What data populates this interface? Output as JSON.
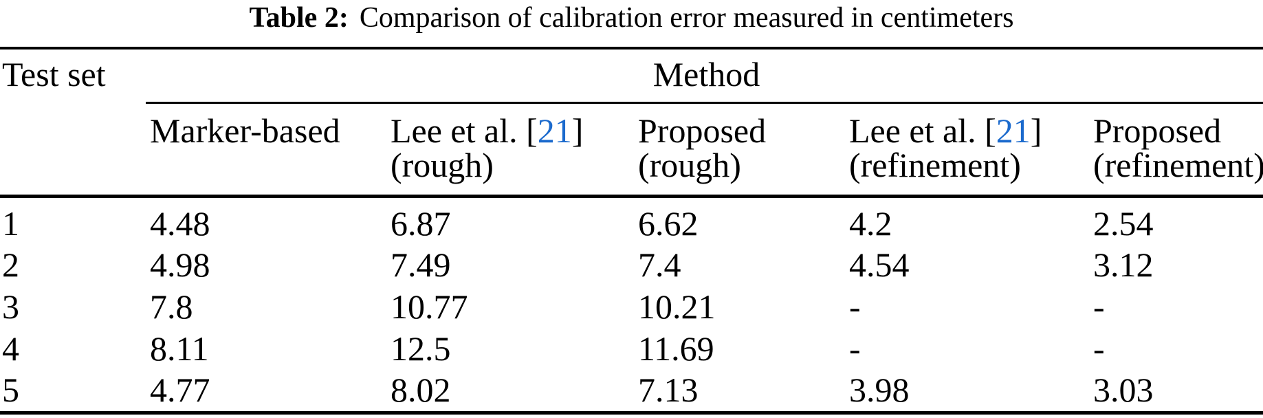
{
  "caption": {
    "label": "Table 2:",
    "text": "Comparison of calibration error measured in centimeters"
  },
  "header": {
    "row_label": "Test set",
    "group_label": "Method",
    "columns": [
      {
        "name": "Marker-based",
        "qualifier": ""
      },
      {
        "name_prefix": "Lee et al. [",
        "cite": "21",
        "name_suffix": "]",
        "qualifier": "(rough)"
      },
      {
        "name": "Proposed",
        "qualifier": "(rough)"
      },
      {
        "name_prefix": "Lee et al. [",
        "cite": "21",
        "name_suffix": "]",
        "qualifier": "(refinement)"
      },
      {
        "name": "Proposed",
        "qualifier": "(refinement)"
      }
    ]
  },
  "rows": [
    {
      "test_set": "1",
      "values": [
        "4.48",
        "6.87",
        "6.62",
        "4.2",
        "2.54"
      ]
    },
    {
      "test_set": "2",
      "values": [
        "4.98",
        "7.49",
        "7.4",
        "4.54",
        "3.12"
      ]
    },
    {
      "test_set": "3",
      "values": [
        "7.8",
        "10.77",
        "10.21",
        "-",
        "-"
      ]
    },
    {
      "test_set": "4",
      "values": [
        "8.11",
        "12.5",
        "11.69",
        "-",
        "-"
      ]
    },
    {
      "test_set": "5",
      "values": [
        "4.77",
        "8.02",
        "7.13",
        "3.98",
        "3.03"
      ]
    }
  ],
  "colors": {
    "text": "#000000",
    "background": "#ffffff",
    "citation_blue": "#1b6acd"
  },
  "chart_data": {
    "type": "table",
    "title": "Table 2: Comparison of calibration error measured in centimeters",
    "columns": [
      "Test set",
      "Marker-based",
      "Lee et al. [21] (rough)",
      "Proposed (rough)",
      "Lee et al. [21] (refinement)",
      "Proposed (refinement)"
    ],
    "rows": [
      [
        "1",
        4.48,
        6.87,
        6.62,
        4.2,
        2.54
      ],
      [
        "2",
        4.98,
        7.49,
        7.4,
        4.54,
        3.12
      ],
      [
        "3",
        7.8,
        10.77,
        10.21,
        null,
        null
      ],
      [
        "4",
        8.11,
        12.5,
        11.69,
        null,
        null
      ],
      [
        "5",
        4.77,
        8.02,
        7.13,
        3.98,
        3.03
      ]
    ]
  }
}
